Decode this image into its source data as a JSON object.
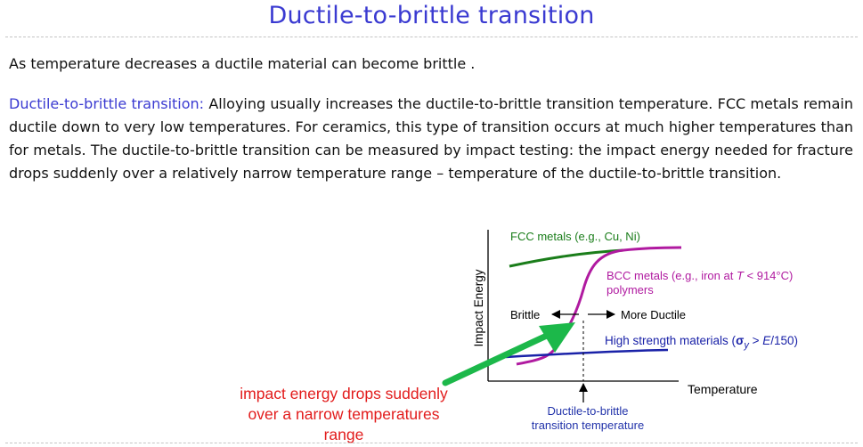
{
  "title": "Ductile-to-brittle transition",
  "intro": "As temperature decreases a ductile material can become brittle .",
  "paragraph": {
    "term": "Ductile-to-brittle transition:",
    "body": " Alloying usually increases the ductile-to-brittle transition temperature. FCC metals remain ductile down to very low temperatures. For ceramics, this type of transition occurs at much higher temperatures than for metals. The ductile-to-brittle transition can be measured by impact testing: the impact energy needed for fracture drops suddenly over a relatively narrow temperature range – temperature of the ductile-to-brittle transition."
  },
  "figure": {
    "y_axis_label": "Impact Energy",
    "x_axis_label": "Temperature",
    "fcc_label": "FCC metals (e.g., Cu, Ni)",
    "bcc_label_line1": "BCC metals (e.g., iron at ",
    "bcc_T": "T",
    "bcc_label_line1_end": " < 914°C)",
    "bcc_label_line2": "polymers",
    "hs_label_start": "High strength materials (",
    "hs_sigma": "σ",
    "hs_sub": "y",
    "hs_gt": " > ",
    "hs_E": "E",
    "hs_end": "/150)",
    "brittle_label": "Brittle",
    "ductile_label": "More Ductile",
    "transition_label_line1": "Ductile-to-brittle",
    "transition_label_line2": "transition temperature",
    "colors": {
      "fcc": "#1a7d1a",
      "bcc": "#b01aa0",
      "high_strength": "#1a22a8",
      "callout_arrow": "#1cb84a",
      "transition_text": "#2233aa",
      "note": "#e21b1b"
    }
  },
  "callout": {
    "line1": "impact energy drops suddenly",
    "line2": "over a narrow temperatures",
    "line3": "range"
  }
}
